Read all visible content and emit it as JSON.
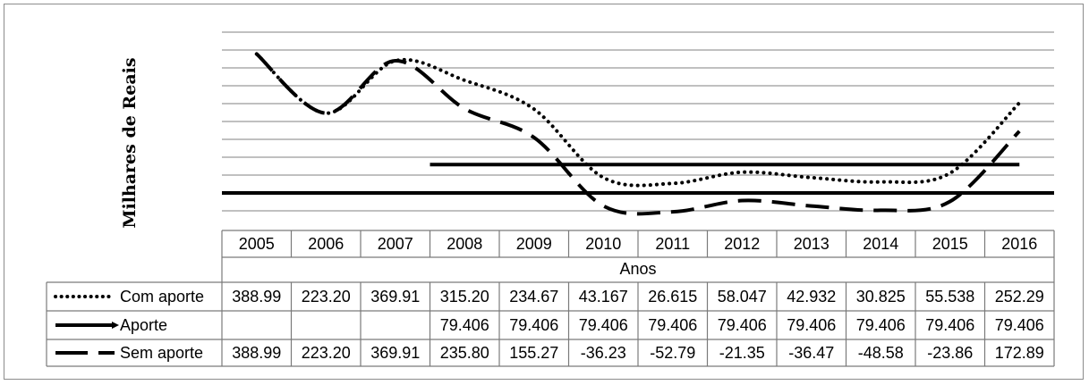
{
  "chart_data": {
    "type": "line",
    "ylabel": "Milhares de Reais",
    "xlabel": "Anos",
    "categories": [
      "2005",
      "2006",
      "2007",
      "2008",
      "2009",
      "2010",
      "2011",
      "2012",
      "2013",
      "2014",
      "2015",
      "2016"
    ],
    "ylim": [
      -100,
      420
    ],
    "grid": true,
    "legend": "table-left",
    "series": [
      {
        "name": "Com aporte",
        "style": "dotted",
        "values": [
          388.99,
          223.2,
          369.91,
          315.2,
          234.67,
          43.167,
          26.615,
          58.047,
          42.932,
          30.825,
          55.538,
          252.29
        ],
        "labels": [
          "388.99",
          "223.20",
          "369.91",
          "315.20",
          "234.67",
          "43.167",
          "26.615",
          "58.047",
          "42.932",
          "30.825",
          "55.538",
          "252.29"
        ]
      },
      {
        "name": "Aporte",
        "style": "solid",
        "values": [
          null,
          null,
          null,
          79.406,
          79.406,
          79.406,
          79.406,
          79.406,
          79.406,
          79.406,
          79.406,
          79.406
        ],
        "labels": [
          "",
          "",
          "",
          "79.406",
          "79.406",
          "79.406",
          "79.406",
          "79.406",
          "79.406",
          "79.406",
          "79.406",
          "79.406"
        ]
      },
      {
        "name": "Sem aporte",
        "style": "dashed",
        "values": [
          388.99,
          223.2,
          369.91,
          235.8,
          155.27,
          -36.23,
          -52.79,
          -21.35,
          -36.47,
          -48.58,
          -23.86,
          172.89
        ],
        "labels": [
          "388.99",
          "223.20",
          "369.91",
          "235.80",
          "155.27",
          "-36.23",
          "-52.79",
          "-21.35",
          "-36.47",
          "-48.58",
          "-23.86",
          "172.89"
        ]
      }
    ],
    "baseline": 0
  }
}
